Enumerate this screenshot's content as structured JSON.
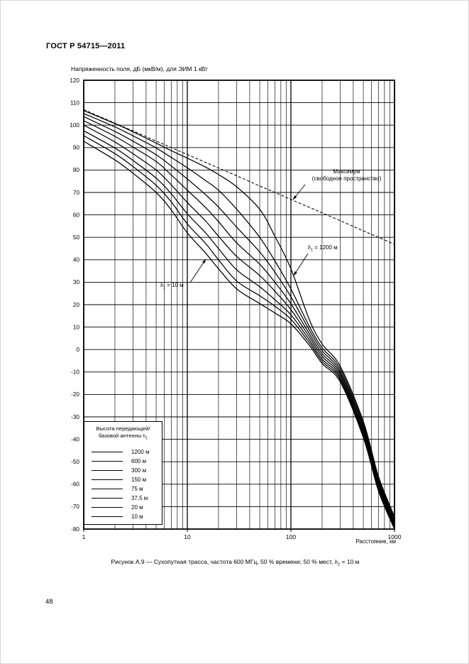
{
  "page": {
    "header": "ГОСТ Р 54715—2011",
    "page_number": "48"
  },
  "caption": {
    "before": "Рисунок А.9 — Сухопутная трасса, частота 600 МГц, 50 % времени; 50 % мест, ",
    "var": "h",
    "sub": "2",
    "after": " = 10 м"
  },
  "annotations": {
    "max_line1": "Максимум",
    "max_line2": "(свободное пространство)",
    "h1200": {
      "var": "h",
      "sub": "1",
      "rest": " = 1200 м"
    },
    "h10": {
      "var": "h",
      "sub": "1",
      "rest": " = 10 м"
    }
  },
  "legend": {
    "title_line1": "Высота передающей/",
    "title_line2_prefix": "базовой антенны ",
    "title_var": "h",
    "title_sub": "1",
    "items": [
      "1200 м",
      "600 м",
      "300 м",
      "150 м",
      "75 м",
      "37,5 м",
      "20 м",
      "10 м"
    ]
  },
  "colors": {
    "ink": "#000000",
    "paper": "#ffffff"
  },
  "chart_data": {
    "type": "line",
    "title": "Напряженность поля, дБ (мкВ/м), для ЭИМ 1 кВт",
    "xlabel": "Расстояние, км",
    "ylabel": "Напряженность поля, дБ (мкВ/м)",
    "x_scale": "log",
    "xlim": [
      1,
      1000
    ],
    "ylim": [
      -80,
      120
    ],
    "y_tick_step": 10,
    "x_ticks_labeled": [
      "1",
      "10",
      "100",
      "1000"
    ],
    "grid": "full-log-minor",
    "legend_position": "inside-bottom-left",
    "x": [
      1,
      2,
      3,
      5,
      7,
      10,
      15,
      20,
      30,
      50,
      70,
      100,
      150,
      200,
      300,
      500,
      700,
      1000
    ],
    "series": [
      {
        "label": "Максимум (свободное пространство)",
        "style": "dashed",
        "values": [
          106.9,
          100.9,
          97.4,
          92.9,
          90.0,
          86.9,
          83.4,
          80.9,
          77.4,
          72.9,
          70.0,
          66.9,
          63.4,
          60.9,
          57.4,
          52.9,
          50.0,
          46.9
        ]
      },
      {
        "label": "1200 м",
        "style": "solid",
        "values": [
          106.5,
          100.7,
          97.0,
          92.0,
          88.6,
          85.3,
          81.3,
          78.0,
          72.5,
          62.5,
          50.5,
          36.0,
          13.5,
          2.5,
          -7.5,
          -32.0,
          -56.5,
          -74.5
        ]
      },
      {
        "label": "600 м",
        "style": "solid",
        "values": [
          105.2,
          99.2,
          95.2,
          89.8,
          85.6,
          81.0,
          75.3,
          71.0,
          62.5,
          50.0,
          39.5,
          27.0,
          10.5,
          0.8,
          -8.7,
          -33.1,
          -57.4,
          -75.3
        ]
      },
      {
        "label": "300 м",
        "style": "solid",
        "values": [
          103.8,
          97.2,
          92.8,
          86.8,
          81.8,
          76.0,
          69.0,
          63.5,
          54.5,
          43.5,
          34.5,
          23.5,
          8.8,
          -0.5,
          -9.8,
          -34.2,
          -58.3,
          -76.1
        ]
      },
      {
        "label": "150 м",
        "style": "solid",
        "values": [
          102.0,
          95.0,
          90.2,
          83.8,
          77.8,
          71.0,
          63.3,
          57.0,
          47.5,
          38.0,
          30.0,
          20.4,
          7.2,
          -1.8,
          -10.8,
          -35.3,
          -59.2,
          -76.9
        ]
      },
      {
        "label": "75 м",
        "style": "solid",
        "values": [
          100.0,
          92.5,
          87.2,
          80.0,
          73.4,
          65.5,
          57.3,
          50.5,
          41.5,
          33.0,
          26.0,
          17.8,
          5.8,
          -3.0,
          -11.8,
          -36.4,
          -60.1,
          -77.7
        ]
      },
      {
        "label": "37,5 м",
        "style": "solid",
        "values": [
          97.5,
          89.8,
          84.2,
          76.4,
          69.4,
          60.5,
          52.0,
          45.0,
          35.5,
          28.0,
          22.2,
          15.5,
          4.4,
          -4.2,
          -12.7,
          -37.4,
          -61.1,
          -78.4
        ]
      },
      {
        "label": "20 м",
        "style": "solid",
        "values": [
          95.3,
          87.3,
          81.5,
          73.2,
          65.8,
          56.0,
          47.3,
          40.0,
          30.5,
          24.0,
          19.3,
          13.5,
          3.2,
          -5.2,
          -13.6,
          -38.3,
          -62.0,
          -79.2
        ]
      },
      {
        "label": "10 м",
        "style": "solid",
        "values": [
          92.8,
          84.5,
          78.5,
          70.0,
          62.2,
          52.0,
          43.0,
          36.0,
          27.0,
          20.5,
          16.3,
          11.5,
          2.0,
          -6.2,
          -14.5,
          -39.2,
          -63.0,
          -80.0
        ]
      }
    ]
  }
}
